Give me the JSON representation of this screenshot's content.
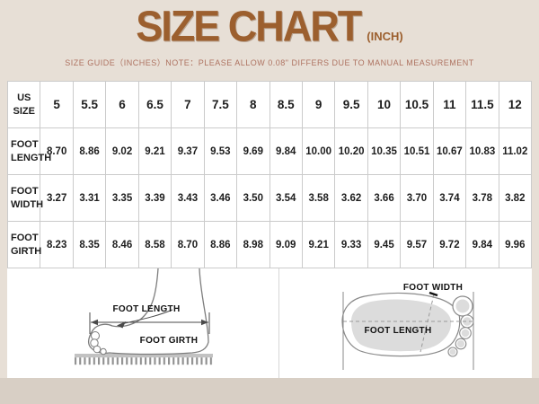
{
  "header": {
    "title": "SIZE CHART",
    "unit_suffix": "(INCH)",
    "note": "SIZE GUIDE（INCHES）NOTE：PLEASE ALLOW 0.08\" DIFFERS DUE TO MANUAL MEASUREMENT"
  },
  "colors": {
    "background": "#e7dfd6",
    "footer_strip": "#d8cfc5",
    "title_brown": "#9c5f2e",
    "note_terracotta": "#ae7260",
    "table_border": "#cbcbcb",
    "diagram_gray": "#8a8a8a"
  },
  "chart_data": {
    "type": "table",
    "title": "SIZE CHART (INCH)",
    "unit": "inches",
    "header_row_label": "US SIZE",
    "sizes": [
      "5",
      "5.5",
      "6",
      "6.5",
      "7",
      "7.5",
      "8",
      "8.5",
      "9",
      "9.5",
      "10",
      "10.5",
      "11",
      "11.5",
      "12"
    ],
    "rows": [
      {
        "label": "FOOT LENGTH",
        "values": [
          "8.70",
          "8.86",
          "9.02",
          "9.21",
          "9.37",
          "9.53",
          "9.69",
          "9.84",
          "10.00",
          "10.20",
          "10.35",
          "10.51",
          "10.67",
          "10.83",
          "11.02"
        ]
      },
      {
        "label": "FOOT WIDTH",
        "values": [
          "3.27",
          "3.31",
          "3.35",
          "3.39",
          "3.43",
          "3.46",
          "3.50",
          "3.54",
          "3.58",
          "3.62",
          "3.66",
          "3.70",
          "3.74",
          "3.78",
          "3.82"
        ]
      },
      {
        "label": "FOOT GIRTH",
        "values": [
          "8.23",
          "8.35",
          "8.46",
          "8.58",
          "8.70",
          "8.86",
          "8.98",
          "9.09",
          "9.21",
          "9.33",
          "9.45",
          "9.57",
          "9.72",
          "9.84",
          "9.96"
        ]
      }
    ]
  },
  "diagrams": {
    "side_view": {
      "length_label": "FOOT LENGTH",
      "girth_label": "FOOT GIRTH"
    },
    "top_view": {
      "width_label": "FOOT WIDTH",
      "length_label": "FOOT LENGTH"
    }
  }
}
